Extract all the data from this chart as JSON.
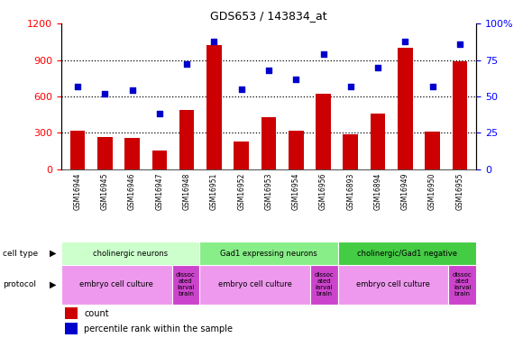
{
  "title": "GDS653 / 143834_at",
  "samples": [
    "GSM16944",
    "GSM16945",
    "GSM16946",
    "GSM16947",
    "GSM16948",
    "GSM16951",
    "GSM16952",
    "GSM16953",
    "GSM16954",
    "GSM16956",
    "GSM16893",
    "GSM16894",
    "GSM16949",
    "GSM16950",
    "GSM16955"
  ],
  "counts": [
    320,
    265,
    255,
    155,
    490,
    1020,
    230,
    430,
    320,
    620,
    290,
    460,
    1000,
    310,
    890
  ],
  "percentiles": [
    57,
    52,
    54,
    38,
    72,
    88,
    55,
    68,
    62,
    79,
    57,
    70,
    88,
    57,
    86
  ],
  "bar_color": "#cc0000",
  "dot_color": "#0000cc",
  "ylim_left": [
    0,
    1200
  ],
  "ylim_right": [
    0,
    100
  ],
  "yticks_left": [
    0,
    300,
    600,
    900,
    1200
  ],
  "yticks_right": [
    0,
    25,
    50,
    75,
    100
  ],
  "ytick_labels_right": [
    "0",
    "25",
    "50",
    "75",
    "100%"
  ],
  "cell_type_groups": [
    {
      "label": "cholinergic neurons",
      "start": 0,
      "end": 5
    },
    {
      "label": "Gad1 expressing neurons",
      "start": 5,
      "end": 10
    },
    {
      "label": "cholinergic/Gad1 negative",
      "start": 10,
      "end": 15
    }
  ],
  "cell_type_colors": [
    "#ccffcc",
    "#88ee88",
    "#44cc44"
  ],
  "protocol_groups": [
    {
      "label": "embryo cell culture",
      "start": 0,
      "end": 4,
      "dissoc": false
    },
    {
      "label": "dissoc\nated\nlarval\nbrain",
      "start": 4,
      "end": 5,
      "dissoc": true
    },
    {
      "label": "embryo cell culture",
      "start": 5,
      "end": 9,
      "dissoc": false
    },
    {
      "label": "dissoc\nated\nlarval\nbrain",
      "start": 9,
      "end": 10,
      "dissoc": true
    },
    {
      "label": "embryo cell culture",
      "start": 10,
      "end": 14,
      "dissoc": false
    },
    {
      "label": "dissoc\nated\nlarval\nbrain",
      "start": 14,
      "end": 15,
      "dissoc": true
    }
  ],
  "embryo_color": "#ee99ee",
  "dissoc_color": "#cc44cc",
  "plot_bg": "#ffffff",
  "label_row_bg": "#cccccc",
  "grid_dotted_color": "#000000",
  "fig_bg": "#ffffff"
}
